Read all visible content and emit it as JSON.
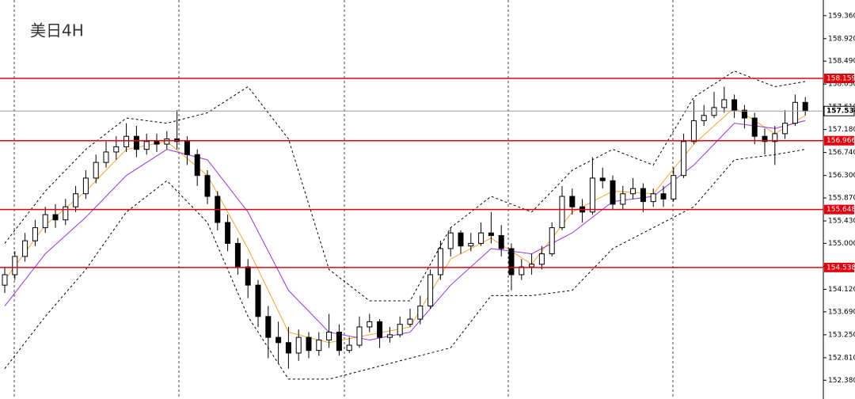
{
  "chart_data": {
    "type": "candlestick",
    "title": "美日4H",
    "ylim": [
      152.02,
      159.66
    ],
    "yticks": [
      {
        "value": 159.36,
        "label": "159.360"
      },
      {
        "value": 158.92,
        "label": "158.920"
      },
      {
        "value": 158.49,
        "label": "158.490"
      },
      {
        "value": 158.05,
        "label": "158.050"
      },
      {
        "value": 157.61,
        "label": "157.610"
      },
      {
        "value": 157.18,
        "label": "157.180"
      },
      {
        "value": 156.74,
        "label": "156.740"
      },
      {
        "value": 156.3,
        "label": "156.300"
      },
      {
        "value": 155.87,
        "label": "155.870"
      },
      {
        "value": 155.43,
        "label": "155.430"
      },
      {
        "value": 155.0,
        "label": "155.000"
      },
      {
        "value": 154.56,
        "label": "154.560"
      },
      {
        "value": 154.12,
        "label": "154.120"
      },
      {
        "value": 153.69,
        "label": "153.690"
      },
      {
        "value": 153.25,
        "label": "153.250"
      },
      {
        "value": 152.81,
        "label": "152.810"
      },
      {
        "value": 152.38,
        "label": "152.380"
      }
    ],
    "levels": [
      158.159,
      156.966,
      155.648,
      154.538
    ],
    "level_color": "#e8000b",
    "last_price": 157.534,
    "up_color": "#ffffff",
    "down_color": "#000000",
    "open": [
      154.2,
      154.4,
      154.75,
      155.05,
      155.3,
      155.55,
      155.45,
      155.7,
      155.95,
      156.25,
      156.55,
      156.75,
      156.85,
      157.05,
      156.8,
      156.95,
      156.9,
      157.0,
      156.95,
      156.7,
      156.3,
      155.9,
      155.4,
      155.0,
      154.55,
      154.2,
      153.6,
      153.2,
      153.1,
      152.9,
      153.2,
      152.95,
      153.15,
      153.3,
      152.95,
      153.05,
      153.4,
      153.5,
      153.2,
      153.25,
      153.45,
      153.55,
      153.8,
      154.4,
      154.9,
      155.2,
      154.95,
      155.0,
      155.2,
      155.15,
      154.9,
      154.4,
      154.55,
      154.6,
      154.8,
      155.3,
      155.9,
      155.7,
      155.6,
      156.25,
      156.2,
      155.75,
      155.95,
      156.05,
      155.8,
      155.95,
      155.85,
      156.3,
      156.95,
      157.35,
      157.45,
      157.6,
      157.75,
      157.55,
      157.4,
      157.05,
      156.95,
      157.1,
      157.3,
      157.7
    ],
    "high": [
      154.55,
      154.85,
      155.2,
      155.45,
      155.7,
      155.75,
      155.85,
      156.1,
      156.4,
      156.7,
      156.95,
      157.05,
      157.3,
      157.25,
      157.1,
      157.1,
      157.15,
      157.55,
      157.05,
      156.8,
      156.4,
      156.0,
      155.55,
      155.1,
      154.7,
      154.3,
      153.8,
      153.5,
      153.4,
      153.35,
      153.3,
      153.3,
      153.65,
      153.45,
      153.2,
      153.6,
      153.65,
      153.55,
      153.4,
      153.6,
      153.75,
      154.0,
      154.5,
      155.05,
      155.3,
      155.25,
      155.2,
      155.4,
      155.6,
      155.35,
      155.0,
      154.7,
      154.8,
      154.95,
      155.4,
      156.1,
      156.05,
      155.85,
      156.65,
      156.45,
      156.3,
      156.1,
      156.25,
      156.15,
      156.05,
      156.1,
      156.45,
      157.1,
      157.75,
      157.65,
      157.9,
      158.0,
      157.85,
      157.65,
      157.5,
      157.2,
      157.25,
      157.55,
      157.85,
      157.8
    ],
    "low": [
      154.05,
      154.3,
      154.65,
      154.95,
      155.2,
      155.3,
      155.35,
      155.6,
      155.85,
      156.15,
      156.45,
      156.6,
      156.75,
      156.65,
      156.7,
      156.75,
      156.8,
      156.8,
      156.5,
      156.1,
      155.75,
      155.25,
      154.85,
      154.4,
      153.95,
      153.4,
      152.8,
      152.7,
      152.6,
      152.75,
      152.8,
      152.85,
      153.0,
      152.85,
      152.9,
      153.0,
      153.3,
      153.0,
      153.1,
      153.2,
      153.4,
      153.45,
      153.75,
      154.3,
      154.75,
      154.8,
      154.85,
      154.95,
      155.0,
      154.75,
      154.1,
      154.3,
      154.4,
      154.5,
      154.75,
      155.25,
      155.55,
      155.4,
      155.55,
      156.05,
      155.65,
      155.65,
      155.85,
      155.6,
      155.7,
      155.7,
      155.8,
      156.25,
      156.9,
      157.25,
      157.4,
      157.5,
      157.4,
      157.2,
      156.9,
      156.7,
      156.5,
      157.0,
      157.25,
      157.45
    ],
    "close": [
      154.4,
      154.75,
      155.05,
      155.3,
      155.55,
      155.45,
      155.7,
      155.95,
      156.25,
      156.55,
      156.75,
      156.85,
      157.05,
      156.8,
      156.95,
      156.9,
      157.0,
      156.95,
      156.7,
      156.3,
      155.9,
      155.4,
      155.0,
      154.55,
      154.2,
      153.6,
      153.2,
      153.1,
      152.9,
      153.2,
      152.95,
      153.15,
      153.3,
      152.95,
      153.05,
      153.4,
      153.5,
      153.2,
      153.25,
      153.45,
      153.55,
      153.8,
      154.4,
      154.9,
      155.2,
      154.95,
      155.0,
      155.2,
      155.15,
      154.9,
      154.4,
      154.55,
      154.6,
      154.8,
      155.3,
      155.9,
      155.7,
      155.6,
      156.25,
      156.2,
      155.75,
      155.95,
      156.05,
      155.8,
      155.95,
      155.85,
      156.3,
      156.95,
      157.35,
      157.45,
      157.6,
      157.75,
      157.55,
      157.4,
      157.05,
      156.95,
      157.1,
      157.3,
      157.7,
      157.534
    ],
    "indicator_x": [
      0,
      4,
      8,
      12,
      16,
      20,
      24,
      28,
      32,
      36,
      40,
      44,
      48,
      52,
      56,
      60,
      64,
      68,
      72,
      76,
      79
    ],
    "series": [
      {
        "color": "#f5a623",
        "dash": false,
        "values": [
          154.3,
          155.35,
          156.0,
          156.8,
          156.95,
          156.3,
          154.9,
          153.3,
          153.1,
          153.25,
          153.4,
          154.7,
          155.1,
          154.6,
          155.6,
          156.0,
          155.95,
          156.9,
          157.6,
          157.1,
          157.45
        ]
      },
      {
        "color": "#9b30e0",
        "dash": false,
        "values": [
          153.8,
          154.8,
          155.5,
          156.3,
          156.8,
          156.6,
          155.6,
          154.1,
          153.3,
          153.15,
          153.3,
          154.2,
          154.9,
          154.8,
          155.2,
          155.8,
          155.9,
          156.5,
          157.3,
          157.2,
          157.35
        ]
      },
      {
        "color": "#000000",
        "dash": true,
        "values": [
          155.0,
          156.0,
          156.8,
          157.4,
          157.3,
          157.5,
          158.0,
          157.0,
          154.5,
          153.9,
          153.9,
          155.3,
          155.9,
          155.6,
          156.4,
          156.8,
          156.5,
          157.8,
          158.3,
          158.0,
          158.1
        ]
      },
      {
        "color": "#000000",
        "dash": true,
        "values": [
          152.6,
          153.6,
          154.5,
          155.6,
          156.2,
          155.4,
          153.6,
          152.4,
          152.4,
          152.6,
          152.8,
          153.0,
          154.0,
          154.0,
          154.1,
          154.9,
          155.3,
          155.7,
          156.6,
          156.7,
          156.8
        ]
      }
    ]
  }
}
